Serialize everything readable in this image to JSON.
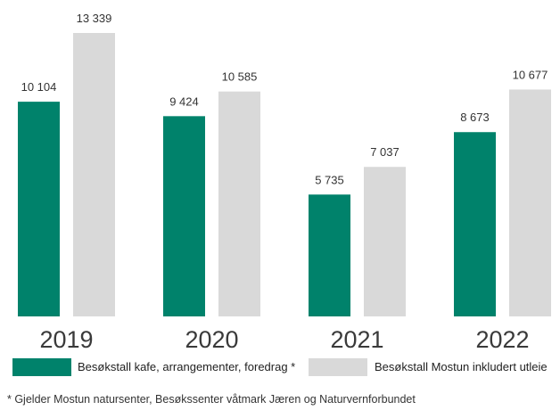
{
  "chart_data": {
    "type": "bar",
    "categories": [
      "2019",
      "2020",
      "2021",
      "2022"
    ],
    "series": [
      {
        "name": "Besøkstall kafe, arrangementer, foredrag *",
        "color": "#00826b",
        "values": [
          10104,
          9424,
          5735,
          8673
        ],
        "labels": [
          "10 104",
          "9 424",
          "5 735",
          "8 673"
        ]
      },
      {
        "name": "Besøkstall Mostun inkludert utleie",
        "color": "#d9d9d9",
        "values": [
          13339,
          10585,
          7037,
          10677
        ],
        "labels": [
          "13 339",
          "10 585",
          "7 037",
          "10 677"
        ]
      }
    ],
    "ylim": [
      0,
      13339
    ],
    "grid": false,
    "legend_position": "bottom"
  },
  "footnote": "* Gjelder Mostun natursenter, Besøkssenter våtmark Jæren og Naturvernforbundet"
}
